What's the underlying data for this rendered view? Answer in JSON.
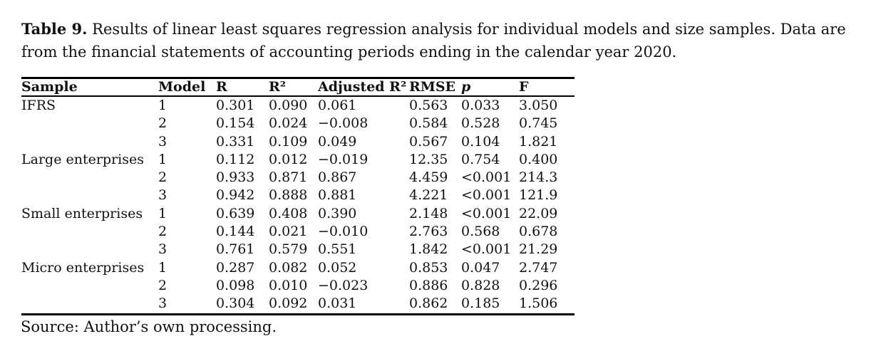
{
  "caption": {
    "label": "Table 9.",
    "line1_rest": " Results of linear least squares regression analysis for individual models and size samples. Data are",
    "line2": "from the financial statements of accounting periods ending in the calendar year 2020."
  },
  "table": {
    "columns": [
      {
        "key": "sample",
        "label": "Sample"
      },
      {
        "key": "model",
        "label": "Model"
      },
      {
        "key": "r",
        "label": "R"
      },
      {
        "key": "r2",
        "label": "R²"
      },
      {
        "key": "adj_r2",
        "label": "Adjusted R²"
      },
      {
        "key": "rmse",
        "label": "RMSE"
      },
      {
        "key": "p",
        "label": "p"
      },
      {
        "key": "f",
        "label": "F"
      }
    ],
    "rows": [
      {
        "sample": "IFRS",
        "model": "1",
        "r": "0.301",
        "r2": "0.090",
        "adj_r2": "0.061",
        "rmse": "0.563",
        "p": "0.033",
        "f": "3.050"
      },
      {
        "sample": "",
        "model": "2",
        "r": "0.154",
        "r2": "0.024",
        "adj_r2": "−0.008",
        "rmse": "0.584",
        "p": "0.528",
        "f": "0.745"
      },
      {
        "sample": "",
        "model": "3",
        "r": "0.331",
        "r2": "0.109",
        "adj_r2": "0.049",
        "rmse": "0.567",
        "p": "0.104",
        "f": "1.821"
      },
      {
        "sample": "Large enterprises",
        "model": "1",
        "r": "0.112",
        "r2": "0.012",
        "adj_r2": "−0.019",
        "rmse": "12.35",
        "p": "0.754",
        "f": "0.400"
      },
      {
        "sample": "",
        "model": "2",
        "r": "0.933",
        "r2": "0.871",
        "adj_r2": "0.867",
        "rmse": "4.459",
        "p": "<0.001",
        "f": "214.3"
      },
      {
        "sample": "",
        "model": "3",
        "r": "0.942",
        "r2": "0.888",
        "adj_r2": "0.881",
        "rmse": "4.221",
        "p": "<0.001",
        "f": "121.9"
      },
      {
        "sample": "Small enterprises",
        "model": "1",
        "r": "0.639",
        "r2": "0.408",
        "adj_r2": "0.390",
        "rmse": "2.148",
        "p": "<0.001",
        "f": "22.09"
      },
      {
        "sample": "",
        "model": "2",
        "r": "0.144",
        "r2": "0.021",
        "adj_r2": "−0.010",
        "rmse": "2.763",
        "p": "0.568",
        "f": "0.678"
      },
      {
        "sample": "",
        "model": "3",
        "r": "0.761",
        "r2": "0.579",
        "adj_r2": "0.551",
        "rmse": "1.842",
        "p": "<0.001",
        "f": "21.29"
      },
      {
        "sample": "Micro enterprises",
        "model": "1",
        "r": "0.287",
        "r2": "0.082",
        "adj_r2": "0.052",
        "rmse": "0.853",
        "p": "0.047",
        "f": "2.747"
      },
      {
        "sample": "",
        "model": "2",
        "r": "0.098",
        "r2": "0.010",
        "adj_r2": "−0.023",
        "rmse": "0.886",
        "p": "0.828",
        "f": "0.296"
      },
      {
        "sample": "",
        "model": "3",
        "r": "0.304",
        "r2": "0.092",
        "adj_r2": "0.031",
        "rmse": "0.862",
        "p": "0.185",
        "f": "1.506"
      }
    ]
  },
  "source_note": "Source: Author’s own processing.",
  "colors": {
    "text": "#111111",
    "rule": "#000000",
    "background": "#ffffff"
  }
}
